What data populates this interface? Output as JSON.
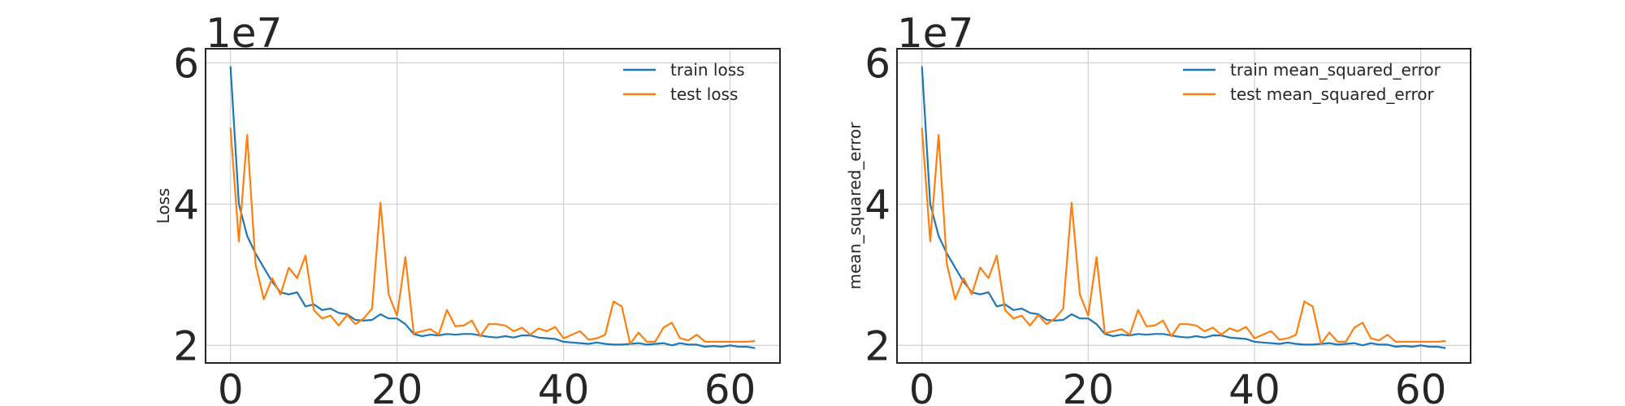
{
  "chart_data": [
    {
      "type": "line",
      "title": "",
      "xlabel": "",
      "ylabel": "Loss",
      "y_offset_label": "1e7",
      "xlim": [
        -3,
        66
      ],
      "ylim": [
        1.75,
        6.2
      ],
      "xticks": [
        0,
        20,
        40,
        60
      ],
      "yticks": [
        2,
        4,
        6
      ],
      "xtick_labels": [
        "0",
        "20",
        "40",
        "60"
      ],
      "ytick_labels": [
        "2",
        "4",
        "6"
      ],
      "grid": true,
      "legend_position": "top-right",
      "series": [
        {
          "name": "train loss",
          "color": "#1f77b4",
          "x": [
            0,
            1,
            2,
            3,
            4,
            5,
            6,
            7,
            8,
            9,
            10,
            11,
            12,
            13,
            14,
            15,
            16,
            17,
            18,
            19,
            20,
            21,
            22,
            23,
            24,
            25,
            26,
            27,
            28,
            29,
            30,
            31,
            32,
            33,
            34,
            35,
            36,
            37,
            38,
            39,
            40,
            41,
            42,
            43,
            44,
            45,
            46,
            47,
            48,
            49,
            50,
            51,
            52,
            53,
            54,
            55,
            56,
            57,
            58,
            59,
            60,
            61,
            62,
            63
          ],
          "values": [
            5.95,
            4.0,
            3.55,
            3.3,
            3.1,
            2.9,
            2.75,
            2.72,
            2.75,
            2.55,
            2.58,
            2.5,
            2.52,
            2.46,
            2.44,
            2.36,
            2.35,
            2.36,
            2.44,
            2.38,
            2.38,
            2.3,
            2.16,
            2.13,
            2.15,
            2.14,
            2.16,
            2.15,
            2.16,
            2.16,
            2.14,
            2.12,
            2.11,
            2.13,
            2.11,
            2.14,
            2.14,
            2.11,
            2.1,
            2.09,
            2.05,
            2.04,
            2.03,
            2.02,
            2.04,
            2.02,
            2.01,
            2.01,
            2.02,
            2.03,
            2.01,
            2.02,
            2.03,
            2.0,
            2.03,
            2.01,
            2.01,
            1.98,
            1.99,
            1.98,
            2.0,
            1.98,
            1.98,
            1.96
          ]
        },
        {
          "name": "test loss",
          "color": "#ff7f0e",
          "x": [
            0,
            1,
            2,
            3,
            4,
            5,
            6,
            7,
            8,
            9,
            10,
            11,
            12,
            13,
            14,
            15,
            16,
            17,
            18,
            19,
            20,
            21,
            22,
            23,
            24,
            25,
            26,
            27,
            28,
            29,
            30,
            31,
            32,
            33,
            34,
            35,
            36,
            37,
            38,
            39,
            40,
            41,
            42,
            43,
            44,
            45,
            46,
            47,
            48,
            49,
            50,
            51,
            52,
            53,
            54,
            55,
            56,
            57,
            58,
            59,
            60,
            61,
            62,
            63
          ],
          "values": [
            5.08,
            3.47,
            4.98,
            3.15,
            2.65,
            2.95,
            2.72,
            3.1,
            2.95,
            3.27,
            2.5,
            2.38,
            2.42,
            2.28,
            2.43,
            2.3,
            2.38,
            2.52,
            4.02,
            2.72,
            2.42,
            3.25,
            2.17,
            2.2,
            2.23,
            2.15,
            2.5,
            2.27,
            2.28,
            2.35,
            2.13,
            2.3,
            2.3,
            2.28,
            2.2,
            2.25,
            2.15,
            2.24,
            2.2,
            2.26,
            2.1,
            2.15,
            2.2,
            2.08,
            2.1,
            2.15,
            2.62,
            2.55,
            2.02,
            2.18,
            2.05,
            2.05,
            2.25,
            2.32,
            2.1,
            2.07,
            2.15,
            2.05,
            2.05,
            2.05,
            2.05,
            2.05,
            2.05,
            2.06
          ]
        }
      ]
    },
    {
      "type": "line",
      "title": "",
      "xlabel": "",
      "ylabel": "mean_squared_error",
      "y_offset_label": "1e7",
      "xlim": [
        -3,
        66
      ],
      "ylim": [
        1.75,
        6.2
      ],
      "xticks": [
        0,
        20,
        40,
        60
      ],
      "yticks": [
        2,
        4,
        6
      ],
      "xtick_labels": [
        "0",
        "20",
        "40",
        "60"
      ],
      "ytick_labels": [
        "2",
        "4",
        "6"
      ],
      "grid": true,
      "legend_position": "top-right",
      "series": [
        {
          "name": "train mean_squared_error",
          "color": "#1f77b4",
          "x": [
            0,
            1,
            2,
            3,
            4,
            5,
            6,
            7,
            8,
            9,
            10,
            11,
            12,
            13,
            14,
            15,
            16,
            17,
            18,
            19,
            20,
            21,
            22,
            23,
            24,
            25,
            26,
            27,
            28,
            29,
            30,
            31,
            32,
            33,
            34,
            35,
            36,
            37,
            38,
            39,
            40,
            41,
            42,
            43,
            44,
            45,
            46,
            47,
            48,
            49,
            50,
            51,
            52,
            53,
            54,
            55,
            56,
            57,
            58,
            59,
            60,
            61,
            62,
            63
          ],
          "values": [
            5.95,
            4.0,
            3.55,
            3.3,
            3.1,
            2.9,
            2.75,
            2.72,
            2.75,
            2.55,
            2.58,
            2.5,
            2.52,
            2.46,
            2.44,
            2.36,
            2.35,
            2.36,
            2.44,
            2.38,
            2.38,
            2.3,
            2.16,
            2.13,
            2.15,
            2.14,
            2.16,
            2.15,
            2.16,
            2.16,
            2.14,
            2.12,
            2.11,
            2.13,
            2.11,
            2.14,
            2.14,
            2.11,
            2.1,
            2.09,
            2.05,
            2.04,
            2.03,
            2.02,
            2.04,
            2.02,
            2.01,
            2.01,
            2.02,
            2.03,
            2.01,
            2.02,
            2.03,
            2.0,
            2.03,
            2.01,
            2.01,
            1.98,
            1.99,
            1.98,
            2.0,
            1.98,
            1.98,
            1.96
          ]
        },
        {
          "name": "test mean_squared_error",
          "color": "#ff7f0e",
          "x": [
            0,
            1,
            2,
            3,
            4,
            5,
            6,
            7,
            8,
            9,
            10,
            11,
            12,
            13,
            14,
            15,
            16,
            17,
            18,
            19,
            20,
            21,
            22,
            23,
            24,
            25,
            26,
            27,
            28,
            29,
            30,
            31,
            32,
            33,
            34,
            35,
            36,
            37,
            38,
            39,
            40,
            41,
            42,
            43,
            44,
            45,
            46,
            47,
            48,
            49,
            50,
            51,
            52,
            53,
            54,
            55,
            56,
            57,
            58,
            59,
            60,
            61,
            62,
            63
          ],
          "values": [
            5.08,
            3.47,
            4.98,
            3.15,
            2.65,
            2.95,
            2.72,
            3.1,
            2.95,
            3.27,
            2.5,
            2.38,
            2.42,
            2.28,
            2.43,
            2.3,
            2.38,
            2.52,
            4.02,
            2.72,
            2.42,
            3.25,
            2.17,
            2.2,
            2.23,
            2.15,
            2.5,
            2.27,
            2.28,
            2.35,
            2.13,
            2.3,
            2.3,
            2.28,
            2.2,
            2.25,
            2.15,
            2.24,
            2.2,
            2.26,
            2.1,
            2.15,
            2.2,
            2.08,
            2.1,
            2.15,
            2.62,
            2.55,
            2.02,
            2.18,
            2.05,
            2.05,
            2.25,
            2.32,
            2.1,
            2.07,
            2.15,
            2.05,
            2.05,
            2.05,
            2.05,
            2.05,
            2.05,
            2.06
          ]
        }
      ]
    }
  ]
}
